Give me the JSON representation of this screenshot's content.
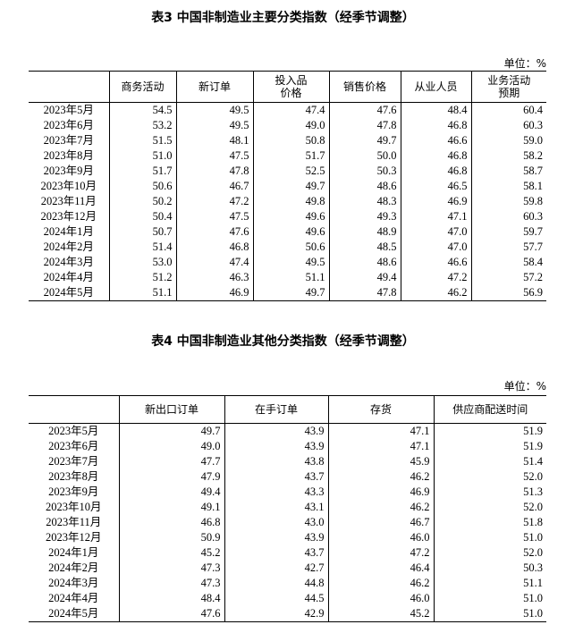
{
  "table3": {
    "title": "表3 中国非制造业主要分类指数（经季节调整）",
    "unit": "单位：%",
    "headers": [
      "",
      "商务活动",
      "新订单",
      "投入品\n价格",
      "销售价格",
      "从业人员",
      "业务活动\n预期"
    ],
    "rows": [
      [
        "2023年5月",
        "54.5",
        "49.5",
        "47.4",
        "47.6",
        "48.4",
        "60.4"
      ],
      [
        "2023年6月",
        "53.2",
        "49.5",
        "49.0",
        "47.8",
        "46.8",
        "60.3"
      ],
      [
        "2023年7月",
        "51.5",
        "48.1",
        "50.8",
        "49.7",
        "46.6",
        "59.0"
      ],
      [
        "2023年8月",
        "51.0",
        "47.5",
        "51.7",
        "50.0",
        "46.8",
        "58.2"
      ],
      [
        "2023年9月",
        "51.7",
        "47.8",
        "52.5",
        "50.3",
        "46.8",
        "58.7"
      ],
      [
        "2023年10月",
        "50.6",
        "46.7",
        "49.7",
        "48.6",
        "46.5",
        "58.1"
      ],
      [
        "2023年11月",
        "50.2",
        "47.2",
        "49.8",
        "48.3",
        "46.9",
        "59.8"
      ],
      [
        "2023年12月",
        "50.4",
        "47.5",
        "49.6",
        "49.3",
        "47.1",
        "60.3"
      ],
      [
        "2024年1月",
        "50.7",
        "47.6",
        "49.6",
        "48.9",
        "47.0",
        "59.7"
      ],
      [
        "2024年2月",
        "51.4",
        "46.8",
        "50.6",
        "48.5",
        "47.0",
        "57.7"
      ],
      [
        "2024年3月",
        "53.0",
        "47.4",
        "49.5",
        "48.6",
        "46.6",
        "58.4"
      ],
      [
        "2024年4月",
        "51.2",
        "46.3",
        "51.1",
        "49.4",
        "47.2",
        "57.2"
      ],
      [
        "2024年5月",
        "51.1",
        "46.9",
        "49.7",
        "47.8",
        "46.2",
        "56.9"
      ]
    ]
  },
  "table4": {
    "title": "表4 中国非制造业其他分类指数（经季节调整）",
    "unit": "单位：%",
    "headers": [
      "",
      "新出口订单",
      "在手订单",
      "存货",
      "供应商配送时间"
    ],
    "rows": [
      [
        "2023年5月",
        "49.7",
        "43.9",
        "47.1",
        "51.9"
      ],
      [
        "2023年6月",
        "49.0",
        "43.9",
        "47.1",
        "51.9"
      ],
      [
        "2023年7月",
        "47.7",
        "43.8",
        "45.9",
        "51.4"
      ],
      [
        "2023年8月",
        "47.9",
        "43.7",
        "46.2",
        "52.0"
      ],
      [
        "2023年9月",
        "49.4",
        "43.3",
        "46.9",
        "51.3"
      ],
      [
        "2023年10月",
        "49.1",
        "43.1",
        "46.2",
        "52.0"
      ],
      [
        "2023年11月",
        "46.8",
        "43.0",
        "46.7",
        "51.8"
      ],
      [
        "2023年12月",
        "50.9",
        "43.9",
        "46.0",
        "51.0"
      ],
      [
        "2024年1月",
        "45.2",
        "43.7",
        "47.2",
        "52.0"
      ],
      [
        "2024年2月",
        "47.3",
        "42.7",
        "46.4",
        "50.3"
      ],
      [
        "2024年3月",
        "47.3",
        "44.8",
        "46.2",
        "51.1"
      ],
      [
        "2024年4月",
        "48.4",
        "44.5",
        "46.0",
        "51.0"
      ],
      [
        "2024年5月",
        "47.6",
        "42.9",
        "45.2",
        "51.0"
      ]
    ]
  }
}
